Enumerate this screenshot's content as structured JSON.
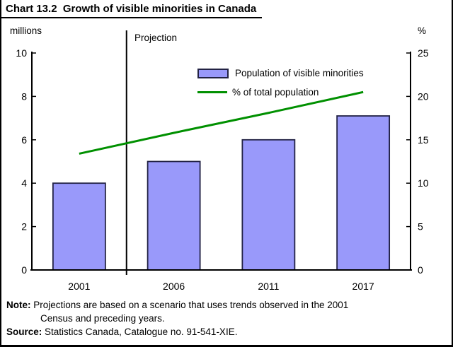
{
  "title": "Chart 13.2  Growth of visible minorities in Canada",
  "left_axis_unit": "millions",
  "right_axis_unit": "%",
  "projection_label": "Projection",
  "legend": {
    "bars": "Population of visible minorities",
    "line": "% of total population"
  },
  "notes": {
    "note_label": "Note:",
    "note_line1": "Projections are based on a scenario that uses trends observed in the 2001",
    "note_line2": "Census and preceding years.",
    "source_label": "Source:",
    "source_text": "Statistics Canada, Catalogue no. 91-541-XIE."
  },
  "colors": {
    "bar_fill": "#9999fa",
    "bar_border": "#222244",
    "line": "#009000",
    "axis": "#000000",
    "projection_divider": "#000000"
  },
  "chart_data": {
    "type": "bar",
    "title": "Chart 13.2  Growth of visible minorities in Canada",
    "categories": [
      "2001",
      "2006",
      "2011",
      "2017"
    ],
    "series": [
      {
        "name": "Population of visible minorities",
        "type": "bar",
        "axis": "left",
        "values": [
          4.0,
          5.0,
          6.0,
          7.1
        ]
      },
      {
        "name": "% of total population",
        "type": "line",
        "axis": "right",
        "values": [
          13.4,
          15.8,
          18.1,
          20.5
        ]
      }
    ],
    "left_axis": {
      "label": "millions",
      "min": 0,
      "max": 10,
      "ticks": [
        0,
        2,
        4,
        6,
        8,
        10
      ]
    },
    "right_axis": {
      "label": "%",
      "min": 0,
      "max": 25,
      "ticks": [
        0,
        5,
        10,
        15,
        20,
        25
      ]
    },
    "projection_divider_after_index": 0,
    "projection_divider_label": "Projection",
    "grid": false,
    "legend_position": "inside-top-center"
  }
}
